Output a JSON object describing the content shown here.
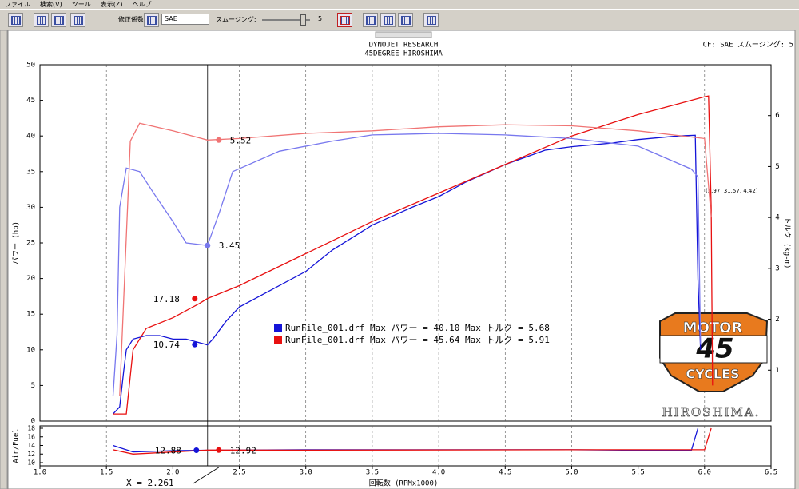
{
  "menu": [
    "ファイル",
    "検索(V)",
    "ツール",
    "表示(Z)",
    "ヘルプ"
  ],
  "toolbar": {
    "correction_label": "修正係数:",
    "correction_value": "SAE",
    "smoothing_label": "スムージング:",
    "smoothing_value": 5
  },
  "logo": {
    "top": "MOTOR",
    "number": "45",
    "bottom": "CYCLES",
    "caption": "HIROSHIMA."
  },
  "chart_data": {
    "type": "line",
    "title": "DYNOJET  RESEARCH",
    "subtitle": "45DEGREE HIROSHIMA",
    "settings": "CF: SAE  スムージング: 5",
    "xlabel": "回転数 (RPMx1000)",
    "ylabel": "パワー (hp)",
    "y2label": "トルク (kg-m)",
    "xlim": [
      1.0,
      6.5
    ],
    "xticks": [
      {
        "value": 1,
        "label": "1.0"
      },
      1.5,
      {
        "value": 2,
        "label": "2.0"
      },
      2.5,
      {
        "value": 3,
        "label": "3.0"
      },
      3.5,
      {
        "value": 4,
        "label": "4.0"
      },
      4.5,
      {
        "value": 5,
        "label": "5.0"
      },
      5.5,
      {
        "value": 6,
        "label": "6.0"
      },
      6.5
    ],
    "ylim": [
      0,
      50
    ],
    "yticks": [
      0,
      5,
      10,
      15,
      20,
      25,
      30,
      35,
      40,
      45,
      50
    ],
    "y2lim": [
      0,
      7
    ],
    "y2ticks": [
      1,
      2,
      3,
      4,
      5,
      6
    ],
    "grid": "x",
    "afr_panel": {
      "ylabel": "Air/Fuel",
      "ylim": [
        10,
        18
      ],
      "yticks": [
        10,
        12,
        14,
        16,
        18
      ]
    },
    "cursor": {
      "value": 2.261,
      "label": "X = 2.261"
    },
    "annotation": "(5.97, 31.57, 4.42)",
    "series": [
      {
        "name": "RunFile_001.drf Max パワー = 40.10   Max トルク = 5.68",
        "color": "#1414d8",
        "readout": 10.74,
        "x": [
          1.55,
          1.6,
          1.63,
          1.65,
          1.7,
          1.8,
          1.9,
          2.0,
          2.1,
          2.2,
          2.26,
          2.3,
          2.4,
          2.5,
          2.7,
          3.0,
          3.2,
          3.5,
          3.8,
          4.0,
          4.2,
          4.5,
          4.8,
          5.0,
          5.3,
          5.5,
          5.8,
          5.93,
          5.95,
          5.97
        ],
        "values": [
          1,
          2,
          7,
          10,
          11.5,
          12,
          12,
          11.5,
          11.5,
          11,
          10.7,
          11.5,
          14,
          16,
          18,
          21,
          24,
          27.5,
          30,
          31.5,
          33.5,
          36,
          38,
          38.5,
          39,
          39.5,
          40,
          40.1,
          20,
          10
        ]
      },
      {
        "name": "RunFile_001.drf Max パワー = 45.64   Max トルク = 5.91",
        "color": "#e81010",
        "readout": 17.18,
        "x": [
          1.55,
          1.65,
          1.7,
          1.8,
          2.0,
          2.2,
          2.26,
          2.5,
          3.0,
          3.5,
          4.0,
          4.5,
          5.0,
          5.5,
          5.8,
          6.0,
          6.03,
          6.05,
          6.06
        ],
        "values": [
          1,
          1,
          10,
          13,
          14.5,
          16.5,
          17.2,
          19,
          23.5,
          28,
          32,
          36,
          40,
          43,
          44.5,
          45.5,
          45.6,
          30,
          5
        ]
      },
      {
        "color": "#7878ee",
        "axis": "y2",
        "readout": 3.45,
        "x": [
          1.55,
          1.58,
          1.6,
          1.65,
          1.75,
          1.85,
          2.0,
          2.1,
          2.26,
          2.35,
          2.45,
          2.8,
          3.2,
          3.5,
          4.0,
          4.5,
          5.0,
          5.5,
          5.9,
          5.95,
          5.97
        ],
        "values": [
          0.5,
          1.7,
          4.2,
          4.97,
          4.9,
          4.5,
          3.92,
          3.5,
          3.45,
          4.1,
          4.9,
          5.3,
          5.5,
          5.62,
          5.65,
          5.62,
          5.55,
          5.4,
          4.95,
          4.8,
          1.5
        ]
      },
      {
        "color": "#f07474",
        "axis": "y2",
        "readout": 5.52,
        "x": [
          1.6,
          1.68,
          1.75,
          2.0,
          2.26,
          2.5,
          3.0,
          3.5,
          4.0,
          4.5,
          5.0,
          5.5,
          6.0,
          6.05
        ],
        "values": [
          0.5,
          5.5,
          5.85,
          5.7,
          5.52,
          5.55,
          5.65,
          5.7,
          5.78,
          5.82,
          5.8,
          5.7,
          5.55,
          4.0
        ]
      },
      {
        "color": "#1414d8",
        "axis": "afr",
        "readout": 12.88,
        "x": [
          1.55,
          1.6,
          1.7,
          2.0,
          2.26,
          3.0,
          4.0,
          5.0,
          5.9,
          5.95
        ],
        "values": [
          14,
          13.5,
          12.5,
          12.8,
          12.88,
          13,
          13,
          13,
          12.8,
          18
        ]
      },
      {
        "color": "#e81010",
        "axis": "afr",
        "readout": 12.92,
        "x": [
          1.55,
          1.7,
          2.26,
          3.0,
          5.0,
          6.0,
          6.05
        ],
        "values": [
          13,
          12,
          12.92,
          12.9,
          13,
          13,
          18
        ]
      }
    ]
  }
}
